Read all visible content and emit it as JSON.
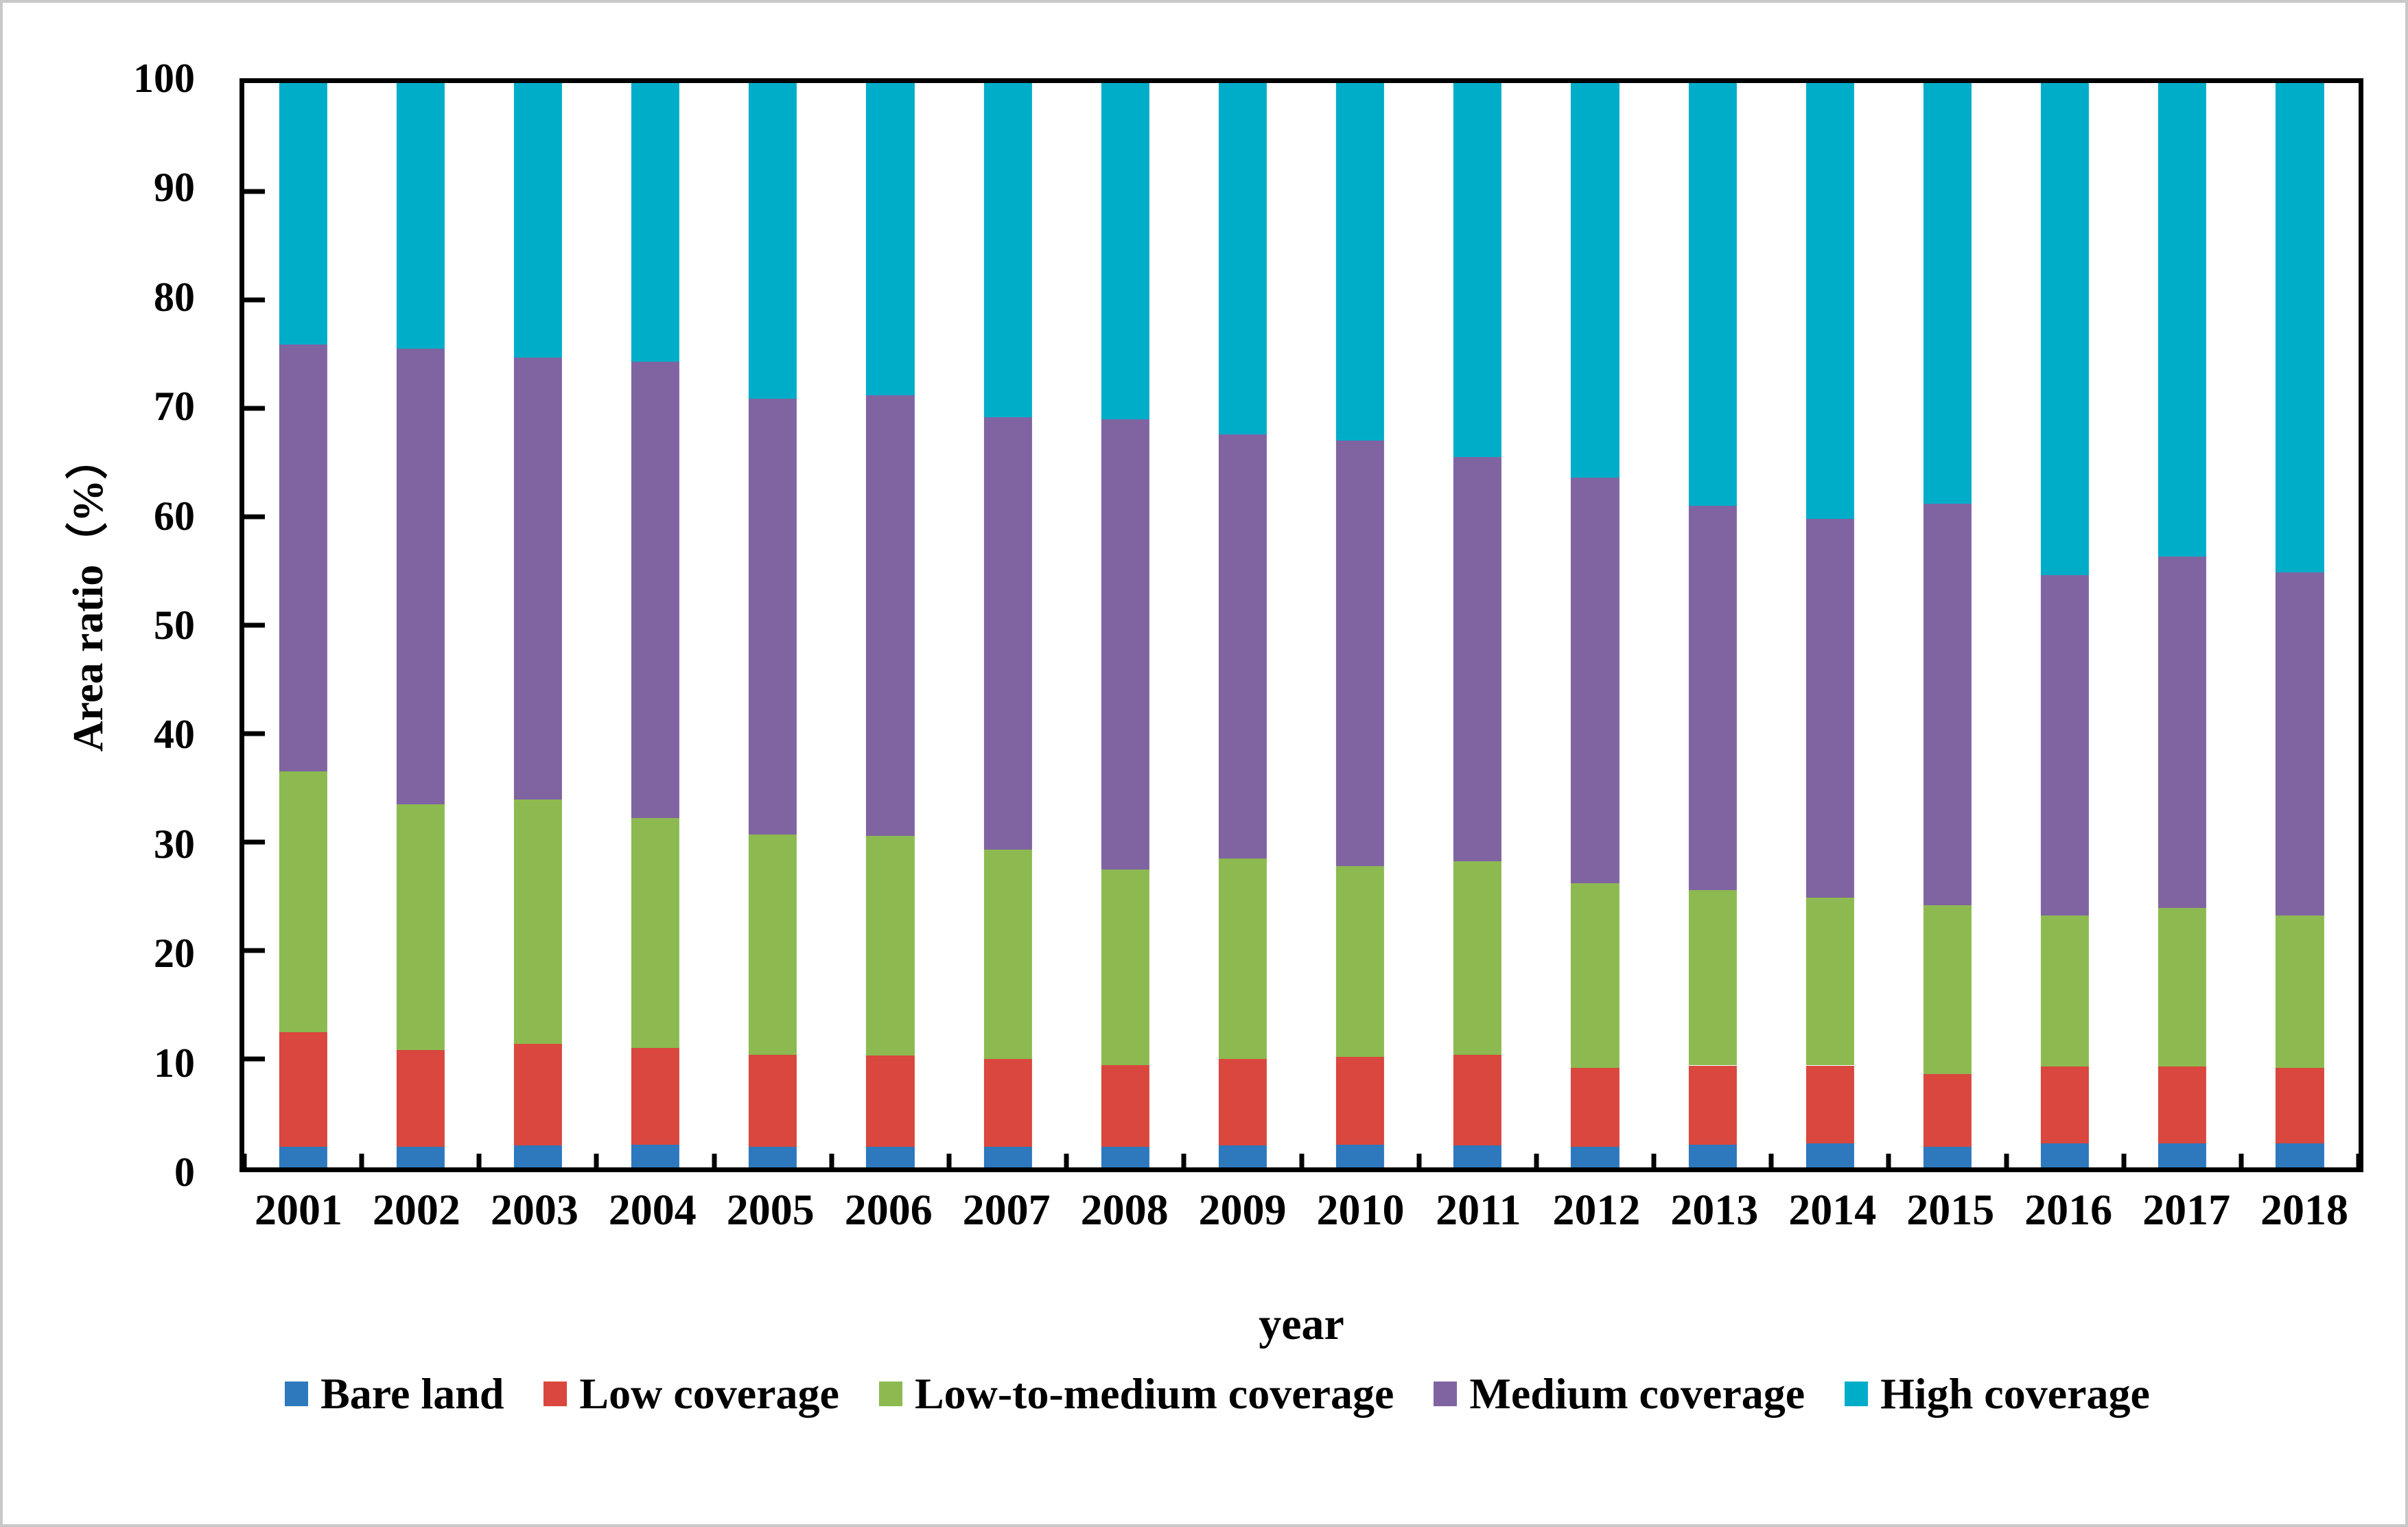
{
  "figure": {
    "background": "#ffffff",
    "outer_border_color": "#c8c8c8",
    "axis_color": "#000000"
  },
  "chart_data": {
    "type": "bar",
    "stacked": true,
    "title": "",
    "xlabel": "year",
    "ylabel": "Area ratio（%）",
    "categories": [
      "2001",
      "2002",
      "2003",
      "2004",
      "2005",
      "2006",
      "2007",
      "2008",
      "2009",
      "2010",
      "2011",
      "2012",
      "2013",
      "2014",
      "2015",
      "2016",
      "2017",
      "2018"
    ],
    "ylim": [
      0,
      100
    ],
    "yticks": [
      0,
      10,
      20,
      30,
      40,
      50,
      60,
      70,
      80,
      90,
      100
    ],
    "grid": false,
    "legend_position": "bottom",
    "series": [
      {
        "name": "Bare land",
        "color": "#2e78be",
        "values": [
          1.9,
          1.9,
          2.0,
          2.1,
          1.9,
          1.9,
          1.9,
          1.9,
          2.0,
          2.1,
          2.0,
          1.9,
          2.1,
          2.2,
          1.9,
          2.2,
          2.2,
          2.2
        ]
      },
      {
        "name": "Low coverage",
        "color": "#d9473e",
        "values": [
          10.6,
          8.9,
          9.4,
          8.9,
          8.5,
          8.4,
          8.1,
          7.5,
          8.0,
          8.1,
          8.4,
          7.3,
          7.3,
          7.2,
          6.7,
          7.1,
          7.1,
          7.0
        ]
      },
      {
        "name": "Low-to-medium coverage",
        "color": "#8cba50",
        "values": [
          24.0,
          22.7,
          22.5,
          21.2,
          20.3,
          20.3,
          19.3,
          18.1,
          18.5,
          17.6,
          17.8,
          17.0,
          16.2,
          15.5,
          15.6,
          13.9,
          14.6,
          14.0
        ]
      },
      {
        "name": "Medium coverage",
        "color": "#8064a2",
        "values": [
          39.4,
          42.0,
          40.8,
          42.1,
          40.2,
          40.6,
          39.9,
          41.5,
          39.1,
          39.2,
          37.3,
          37.4,
          35.4,
          34.9,
          37.0,
          31.4,
          32.4,
          31.7
        ]
      },
      {
        "name": "High coverage",
        "color": "#00adc8",
        "values": [
          24.1,
          24.5,
          25.3,
          25.7,
          29.1,
          28.8,
          30.8,
          31.0,
          32.4,
          33.0,
          34.5,
          36.4,
          39.0,
          40.2,
          38.8,
          45.4,
          43.7,
          45.1
        ]
      }
    ]
  }
}
